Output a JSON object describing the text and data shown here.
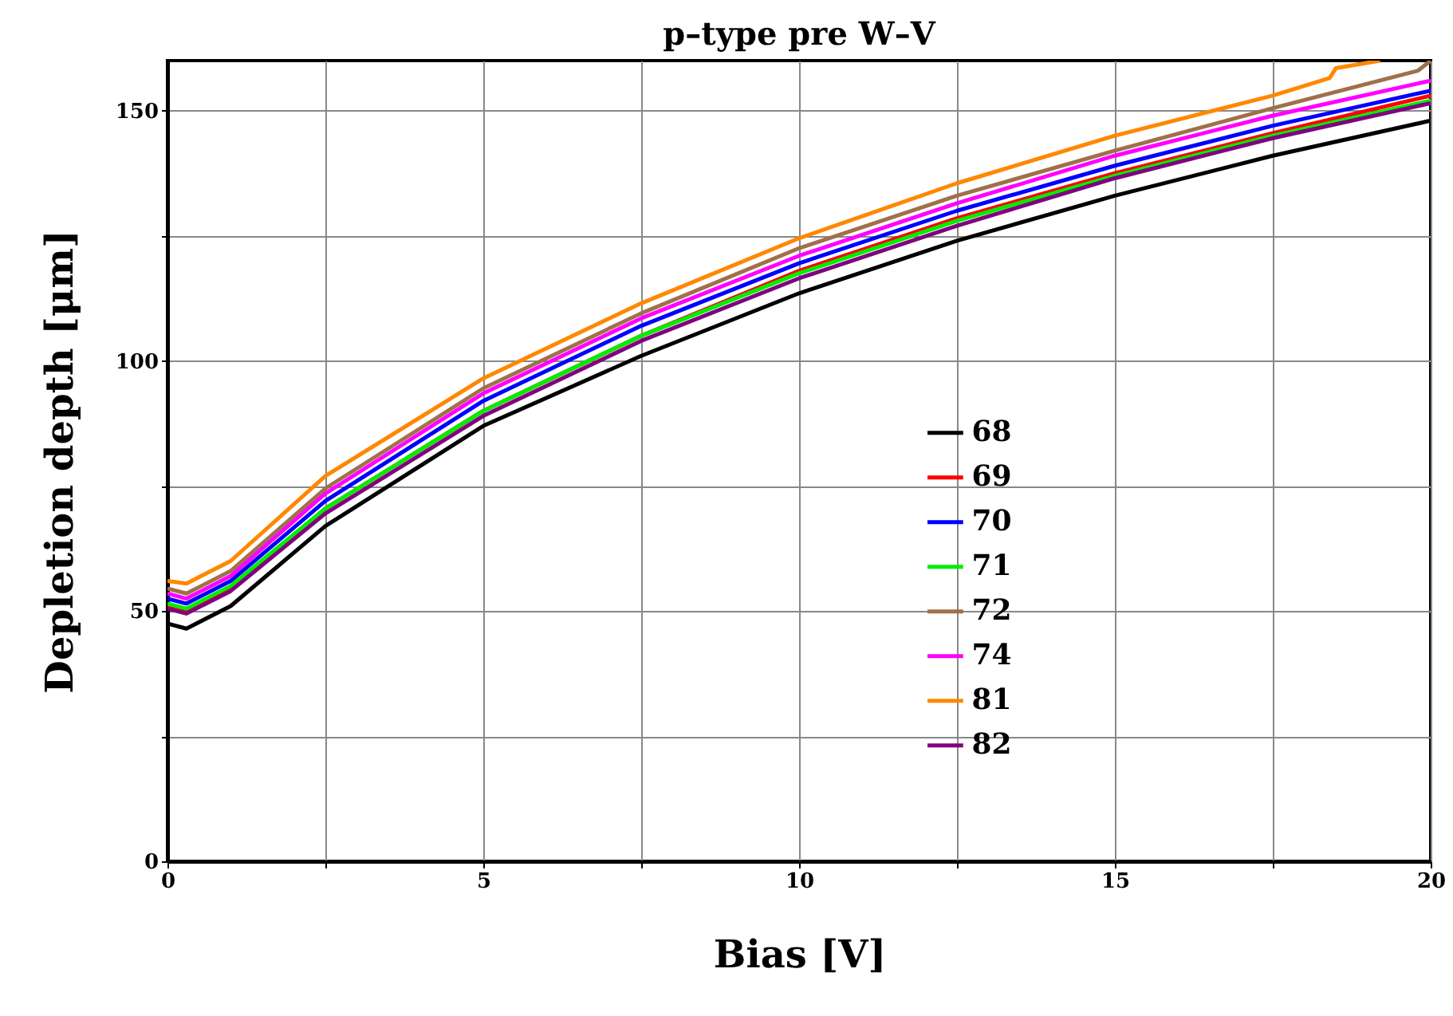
{
  "chart_data": {
    "type": "line",
    "title": "p–type pre W–V",
    "xlabel": "Bias [V]",
    "ylabel": "Depletion depth [μm]",
    "x": [
      0,
      0.3,
      1,
      2.5,
      5,
      7.5,
      10,
      12.5,
      15,
      17.5,
      20
    ],
    "series": [
      {
        "name": "68",
        "color": "#000000",
        "values": [
          47.5,
          46.5,
          51,
          67,
          87,
          101,
          113.5,
          124,
          133,
          141,
          148
        ]
      },
      {
        "name": "69",
        "color": "#ff0000",
        "values": [
          51,
          50,
          54.5,
          70.5,
          90,
          105,
          118,
          128.5,
          137.5,
          145.5,
          153
        ]
      },
      {
        "name": "70",
        "color": "#0000ff",
        "values": [
          52.5,
          51.5,
          56,
          72,
          92,
          107,
          119.5,
          130,
          139,
          147,
          154
        ]
      },
      {
        "name": "71",
        "color": "#00ee00",
        "values": [
          51.5,
          50.5,
          55,
          70.5,
          90,
          105,
          117.5,
          128,
          137,
          145,
          152
        ]
      },
      {
        "name": "72",
        "color": "#a0704a",
        "x": [
          0,
          0.3,
          1,
          2.5,
          5,
          7.5,
          10,
          12.5,
          15,
          17.5,
          19.8,
          20
        ],
        "values": [
          54.5,
          53.5,
          58,
          74.5,
          94.5,
          109.5,
          122.5,
          133,
          142,
          150.5,
          158,
          160
        ]
      },
      {
        "name": "74",
        "color": "#ff00ff",
        "values": [
          53.5,
          52.5,
          57,
          73.5,
          93.5,
          108.5,
          121,
          131.5,
          141,
          149,
          156
        ]
      },
      {
        "name": "81",
        "color": "#ff8800",
        "x": [
          0,
          0.3,
          1,
          2.5,
          5,
          7.5,
          10,
          12.5,
          15,
          17.5,
          18.4,
          18.5,
          19.2
        ],
        "values": [
          56,
          55.5,
          60,
          77,
          96.5,
          111.5,
          124.5,
          135.5,
          145,
          153,
          156.5,
          158.5,
          160
        ]
      },
      {
        "name": "82",
        "color": "#800080",
        "values": [
          50.5,
          49.5,
          54,
          69.5,
          89,
          104,
          116.5,
          127,
          136.5,
          144.5,
          151.5
        ]
      }
    ],
    "xlim": [
      0,
      20
    ],
    "ylim": [
      0,
      160
    ],
    "xticks": [
      0,
      {
        "value": 2.5,
        "label": null
      },
      5,
      {
        "value": 7.5,
        "label": null
      },
      10,
      {
        "value": 12.5,
        "label": null
      },
      15,
      {
        "value": 17.5,
        "label": null
      },
      20
    ],
    "yticks": [
      0,
      {
        "value": 25,
        "label": null
      },
      50,
      {
        "value": 75,
        "label": null
      },
      100,
      {
        "value": 125,
        "label": null
      },
      150
    ],
    "grid": true,
    "legend": "right"
  }
}
